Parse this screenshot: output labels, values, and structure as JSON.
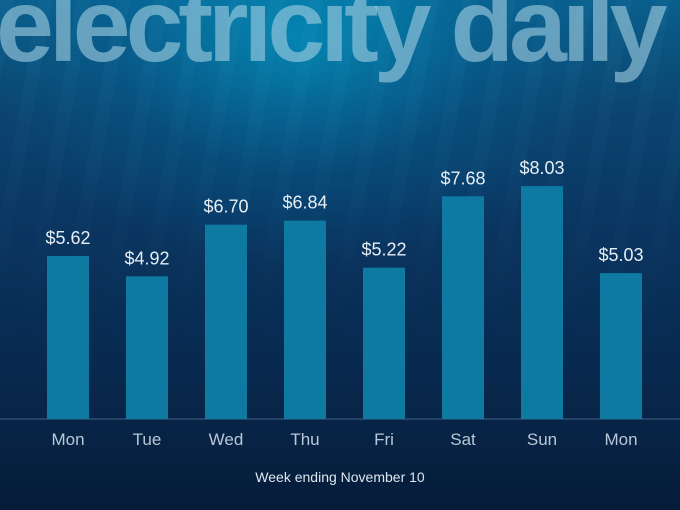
{
  "brand": {
    "title": "electricity daily"
  },
  "colors": {
    "bar": "#0e7aa1",
    "background_top": "#0a5f8c",
    "background_bottom": "#061c3a",
    "value_label": "#e6eef4",
    "tick_label": "#b8c8d6"
  },
  "chart_data": {
    "type": "bar",
    "title": "electricity daily",
    "xlabel": "Week ending November 10",
    "ylabel": "",
    "categories": [
      "Mon",
      "Tue",
      "Wed",
      "Thu",
      "Fri",
      "Sat",
      "Sun",
      "Mon"
    ],
    "values": [
      5.62,
      4.92,
      6.7,
      6.84,
      5.22,
      7.68,
      8.03,
      5.03
    ],
    "value_labels": [
      "$5.62",
      "$4.92",
      "$6.70",
      "$6.84",
      "$5.22",
      "$7.68",
      "$8.03",
      "$5.03"
    ],
    "ylim": [
      0,
      10
    ],
    "grid": false,
    "legend": "none"
  }
}
